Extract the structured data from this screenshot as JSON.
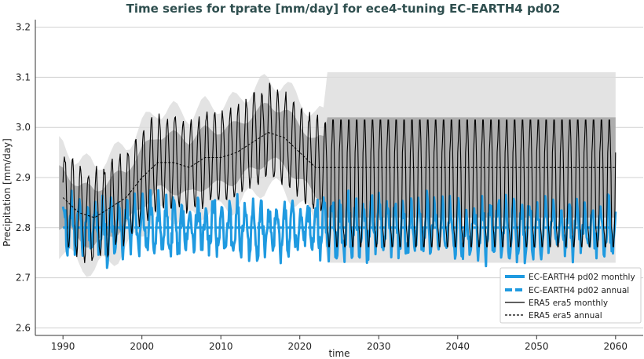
{
  "chart_data": {
    "type": "line",
    "title": "Time series for tprate [mm/day] for ece4-tuning EC-EARTH4 pd02",
    "xlabel": "time",
    "ylabel": "Precipitation [mm/day]",
    "xlim": [
      1986.5,
      2063.5
    ],
    "ylim": [
      2.585,
      3.215
    ],
    "xticks": [
      1990,
      2000,
      2010,
      2020,
      2030,
      2040,
      2050,
      2060
    ],
    "xtick_labels": [
      "1990",
      "2000",
      "2010",
      "2020",
      "2030",
      "2040",
      "2050",
      "2060"
    ],
    "yticks": [
      2.6,
      2.7,
      2.8,
      2.9,
      3.0,
      3.1,
      3.2
    ],
    "ytick_labels": [
      "2.6",
      "2.7",
      "2.8",
      "2.9",
      "3.0",
      "3.1",
      "3.2"
    ],
    "grid": "horizontal",
    "legend_position": "bottom-right",
    "legend": [
      "EC-EARTH4 pd02 monthly",
      "EC-EARTH4 pd02 annual",
      "ERA5 era5 monthly",
      "ERA5 era5 annual"
    ],
    "colors": {
      "model": "#1f9ae0",
      "reference": "#000000",
      "band_dark": "#a6a6a6",
      "band_light": "#dcdcdc",
      "grid": "#d0d0d0"
    },
    "series": [
      {
        "name": "EC-EARTH4 pd02 monthly",
        "style": "thick solid blue",
        "x_range": [
          1990,
          2060
        ],
        "mean": 2.8,
        "seasonal_amplitude": 0.045,
        "min": 2.685,
        "max": 2.9
      },
      {
        "name": "EC-EARTH4 pd02 annual",
        "style": "thick dashed blue",
        "x_range": [
          1990,
          2060
        ],
        "mean": 2.8
      },
      {
        "name": "ERA5 era5 monthly",
        "style": "thin solid black",
        "x_range": [
          1990,
          2060
        ],
        "climatology_after": 2023.5,
        "climatology_range": [
          2.76,
          3.02
        ]
      },
      {
        "name": "ERA5 era5 annual",
        "style": "thin dashed black",
        "x": [
          1990,
          1992,
          1994,
          1996,
          1998,
          2000,
          2002,
          2004,
          2006,
          2008,
          2010,
          2012,
          2014,
          2016,
          2018,
          2020,
          2022,
          2023.5,
          2060
        ],
        "values": [
          2.86,
          2.83,
          2.82,
          2.84,
          2.86,
          2.9,
          2.93,
          2.93,
          2.92,
          2.94,
          2.94,
          2.95,
          2.97,
          2.99,
          2.98,
          2.95,
          2.92,
          2.92,
          2.92
        ]
      }
    ]
  }
}
